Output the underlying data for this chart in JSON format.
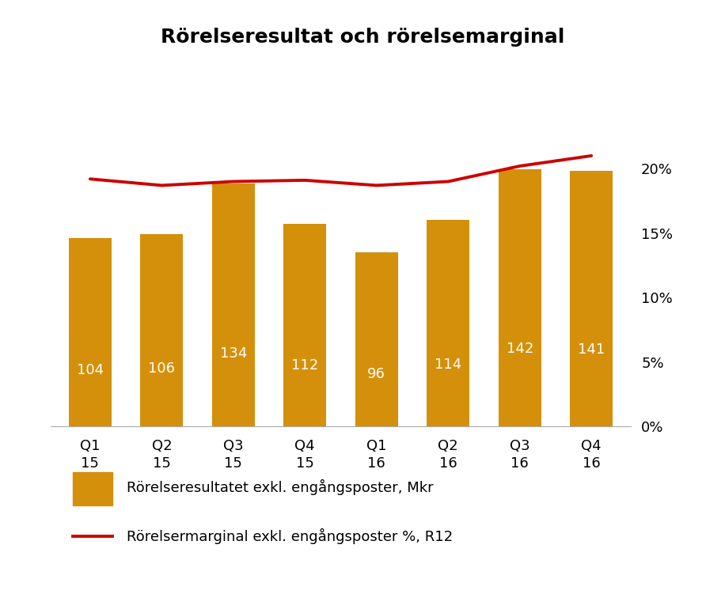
{
  "title": "Rörelseresultat och rörelsemarginal",
  "categories": [
    "Q1\n15",
    "Q2\n15",
    "Q3\n15",
    "Q4\n15",
    "Q1\n16",
    "Q2\n16",
    "Q3\n16",
    "Q4\n16"
  ],
  "bar_values": [
    104,
    106,
    134,
    112,
    96,
    114,
    142,
    141
  ],
  "bar_color": "#D4900A",
  "line_values": [
    19.2,
    18.7,
    19.0,
    19.1,
    18.7,
    19.0,
    20.2,
    21.0
  ],
  "line_color": "#CC0000",
  "left_ylim": [
    0,
    185
  ],
  "right_ylim": [
    0,
    26.0
  ],
  "right_yticks": [
    0,
    5,
    10,
    15,
    20
  ],
  "right_yticklabels": [
    "0%",
    "5%",
    "10%",
    "15%",
    "20%"
  ],
  "legend_bar_label": "Rörelseresultatet exkl. engångsposter, Mkr",
  "legend_line_label": "Rörelsermarginal exkl. engångsposter %, R12",
  "title_fontsize": 18,
  "label_fontsize": 13,
  "tick_fontsize": 13,
  "bar_label_fontsize": 13,
  "bar_label_color": "white",
  "background_color": "#FFFFFF"
}
